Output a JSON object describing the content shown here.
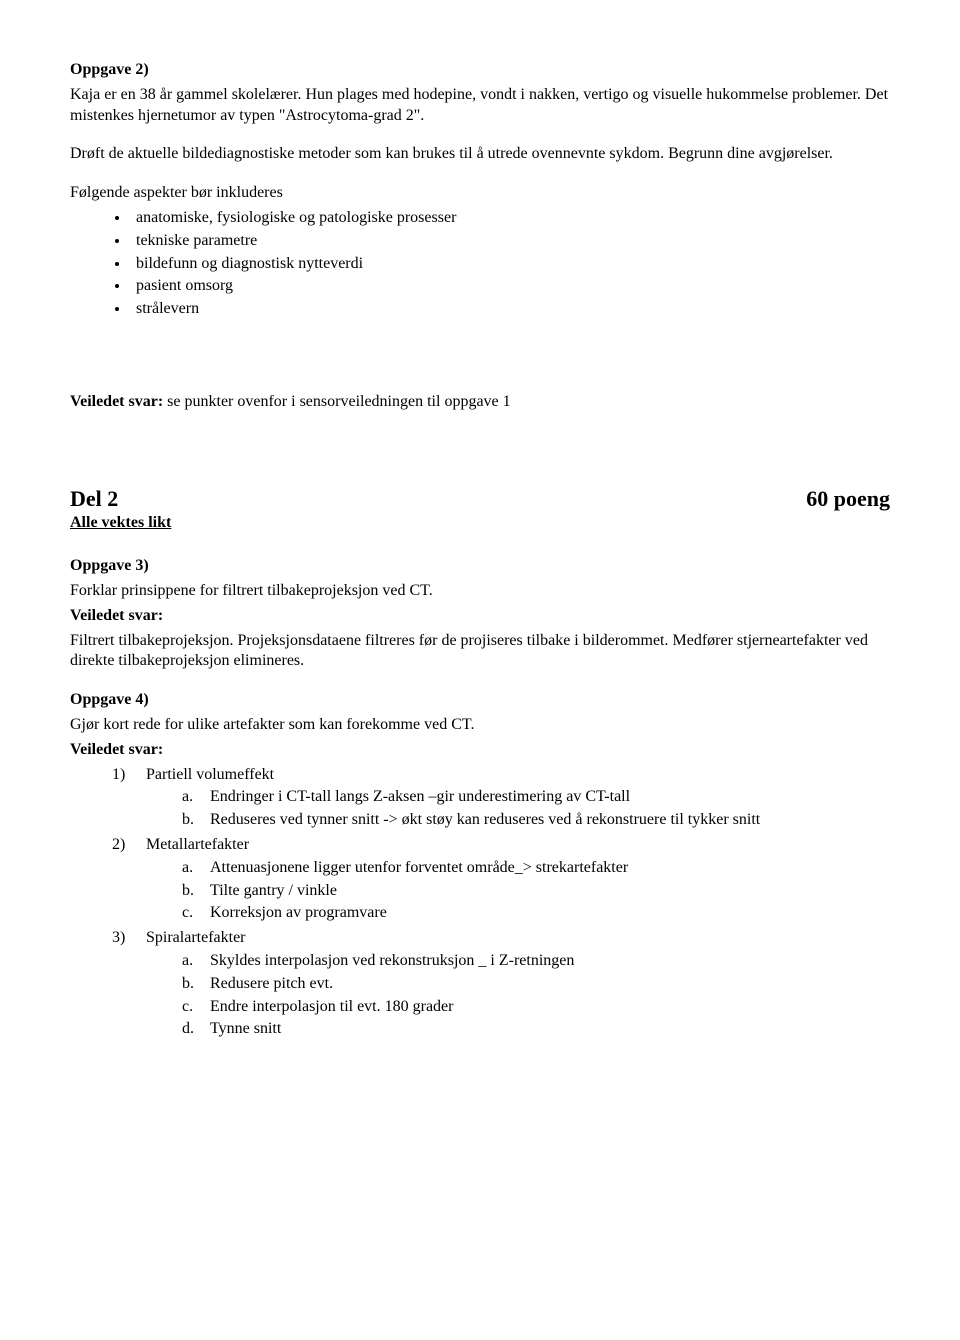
{
  "oppgave2": {
    "heading": "Oppgave 2)",
    "p1": "Kaja er en 38 år gammel skolelærer. Hun plages med hodepine, vondt i nakken, vertigo og visuelle hukommelse problemer. Det mistenkes hjernetumor av typen \"Astrocytoma-grad 2\".",
    "p2": "Drøft de aktuelle bildediagnostiske metoder som kan brukes til å utrede ovennevnte sykdom. Begrunn dine avgjørelser.",
    "aspects_intro": "Følgende aspekter bør inkluderes",
    "bullets": [
      "anatomiske, fysiologiske og patologiske prosesser",
      "tekniske parametre",
      "bildefunn og diagnostisk nytteverdi",
      "pasient omsorg",
      "strålevern"
    ],
    "veiledet_svar_label": "Veiledet svar:",
    "veiledet_svar_text": "  se punkter ovenfor i sensorveiledningen til oppgave 1"
  },
  "del2": {
    "title": "Del 2",
    "poeng": "60 poeng",
    "subtitle": "Alle vektes likt"
  },
  "oppgave3": {
    "heading": "Oppgave 3)",
    "q": "Forklar prinsippene for filtrert tilbakeprojeksjon ved CT.",
    "svar_label": "Veiledet svar:",
    "svar": "Filtrert tilbakeprojeksjon. Projeksjonsdataene filtreres før de projiseres tilbake i bilderommet. Medfører stjerneartefakter ved direkte tilbakeprojeksjon elimineres."
  },
  "oppgave4": {
    "heading": "Oppgave 4)",
    "q": "Gjør kort rede for ulike artefakter som kan forekomme ved CT.",
    "svar_label": "Veiledet svar:",
    "items": [
      {
        "title": "Partiell volumeffekt",
        "sub": [
          "Endringer i CT-tall langs Z-aksen –gir underestimering av CT-tall",
          "Reduseres ved tynner snitt -> økt støy kan reduseres ved å rekonstruere til tykker snitt"
        ]
      },
      {
        "title": "Metallartefakter",
        "sub": [
          "Attenuasjonene ligger utenfor forventet område_> strekartefakter",
          "Tilte gantry / vinkle",
          "Korreksjon av programvare"
        ]
      },
      {
        "title": "Spiralartefakter",
        "sub": [
          "Skyldes interpolasjon ved rekonstruksjon _ i Z-retningen",
          "Redusere pitch evt.",
          "Endre interpolasjon til evt. 180 grader",
          "Tynne snitt"
        ]
      }
    ]
  }
}
